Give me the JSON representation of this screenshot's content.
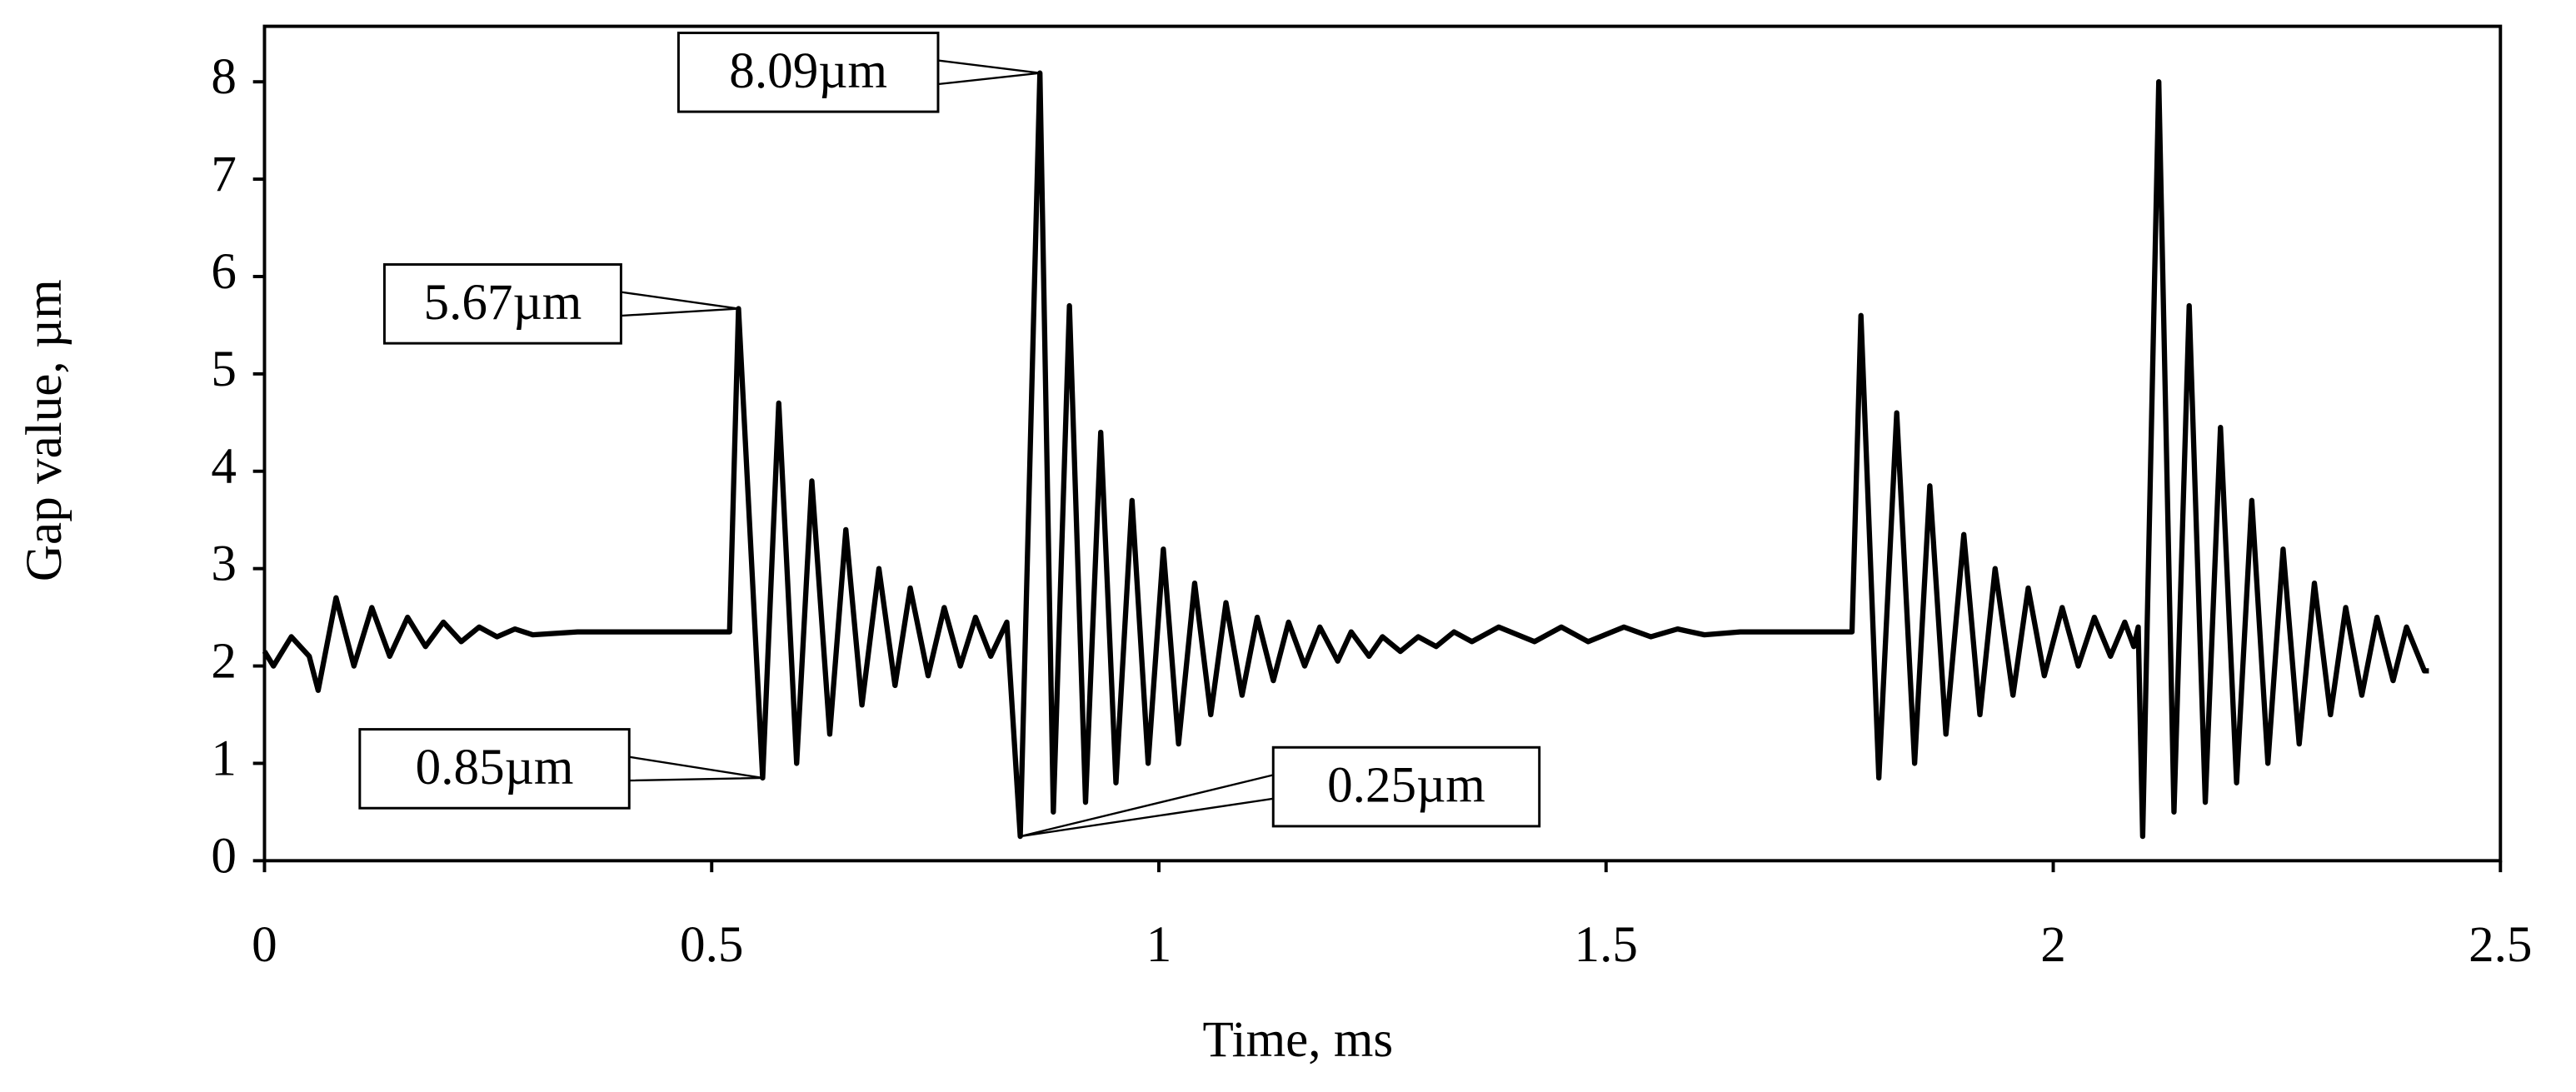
{
  "chart_data": {
    "type": "line",
    "x_label": "Time, ms",
    "y_label": "Gap value, µm",
    "xlim": [
      0,
      2.5
    ],
    "ylim": [
      0,
      8.57
    ],
    "xticks": [
      0,
      0.5,
      1,
      1.5,
      2,
      2.5
    ],
    "yticks": [
      0,
      1,
      2,
      3,
      4,
      5,
      6,
      7,
      8
    ],
    "series": [
      {
        "name": "Gap value",
        "color": "#000000",
        "x": [
          0,
          0.01,
          0.03,
          0.05,
          0.06,
          0.08,
          0.1,
          0.12,
          0.14,
          0.16,
          0.18,
          0.2,
          0.22,
          0.24,
          0.26,
          0.28,
          0.3,
          0.35,
          0.52,
          0.53,
          0.557,
          0.575,
          0.595,
          0.612,
          0.632,
          0.65,
          0.668,
          0.687,
          0.705,
          0.722,
          0.742,
          0.76,
          0.778,
          0.795,
          0.812,
          0.83,
          0.845,
          0.867,
          0.882,
          0.9,
          0.918,
          0.935,
          0.952,
          0.97,
          0.988,
          1.005,
          1.022,
          1.04,
          1.058,
          1.075,
          1.093,
          1.11,
          1.128,
          1.145,
          1.163,
          1.18,
          1.2,
          1.215,
          1.235,
          1.25,
          1.27,
          1.29,
          1.31,
          1.33,
          1.35,
          1.38,
          1.42,
          1.45,
          1.48,
          1.52,
          1.55,
          1.58,
          1.61,
          1.65,
          1.775,
          1.785,
          1.805,
          1.825,
          1.845,
          1.862,
          1.88,
          1.9,
          1.918,
          1.935,
          1.955,
          1.972,
          1.99,
          2.01,
          2.028,
          2.046,
          2.064,
          2.08,
          2.09,
          2.095,
          2.1,
          2.118,
          2.135,
          2.152,
          2.17,
          2.187,
          2.205,
          2.222,
          2.24,
          2.257,
          2.275,
          2.292,
          2.31,
          2.327,
          2.345,
          2.362,
          2.38,
          2.395,
          2.415,
          2.42
        ],
        "values": [
          2.15,
          2.0,
          2.3,
          2.1,
          1.75,
          2.7,
          2.0,
          2.6,
          2.1,
          2.5,
          2.2,
          2.45,
          2.25,
          2.4,
          2.3,
          2.38,
          2.32,
          2.35,
          2.35,
          5.67,
          0.85,
          4.7,
          1.0,
          3.9,
          1.3,
          3.4,
          1.6,
          3.0,
          1.8,
          2.8,
          1.9,
          2.6,
          2.0,
          2.5,
          2.1,
          2.45,
          0.25,
          8.09,
          0.5,
          5.7,
          0.6,
          4.4,
          0.8,
          3.7,
          1.0,
          3.2,
          1.2,
          2.85,
          1.5,
          2.65,
          1.7,
          2.5,
          1.85,
          2.45,
          2.0,
          2.4,
          2.05,
          2.35,
          2.1,
          2.3,
          2.15,
          2.3,
          2.2,
          2.35,
          2.25,
          2.4,
          2.25,
          2.4,
          2.25,
          2.4,
          2.3,
          2.38,
          2.32,
          2.35,
          2.35,
          5.6,
          0.85,
          4.6,
          1.0,
          3.85,
          1.3,
          3.35,
          1.5,
          3.0,
          1.7,
          2.8,
          1.9,
          2.6,
          2.0,
          2.5,
          2.1,
          2.45,
          2.2,
          2.4,
          0.25,
          8.0,
          0.5,
          5.7,
          0.6,
          4.45,
          0.8,
          3.7,
          1.0,
          3.2,
          1.2,
          2.85,
          1.5,
          2.6,
          1.7,
          2.5,
          1.85,
          2.4,
          1.95,
          1.95
        ]
      }
    ],
    "annotations": [
      {
        "text": "5.67µm",
        "x": 0.53,
        "y": 5.67
      },
      {
        "text": "8.09µm",
        "x": 0.867,
        "y": 8.09
      },
      {
        "text": "0.85µm",
        "x": 0.557,
        "y": 0.85
      },
      {
        "text": "0.25µm",
        "x": 0.845,
        "y": 0.25
      }
    ]
  }
}
